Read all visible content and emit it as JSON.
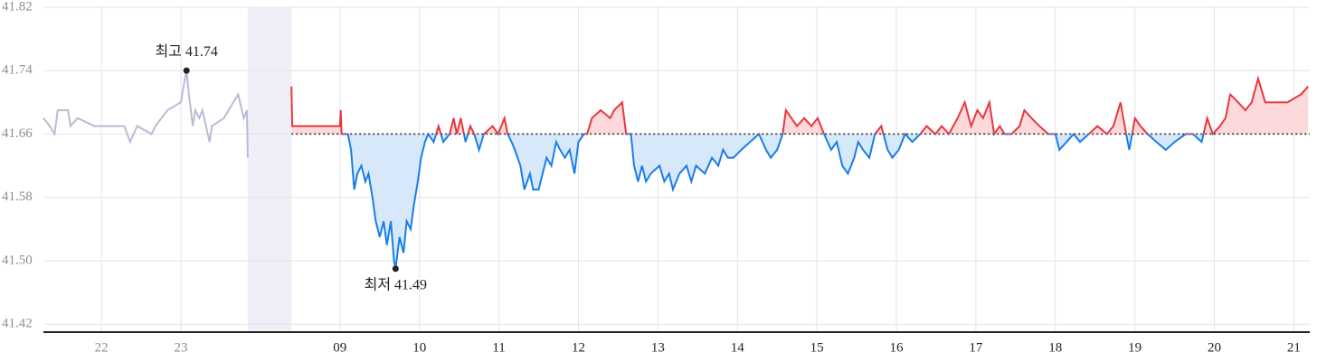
{
  "chart_data": {
    "type": "line",
    "xlim": [
      21.27,
      37.2
    ],
    "ylim": [
      41.41,
      41.82
    ],
    "yticks": [
      41.42,
      {
        "value": 41.5,
        "label": "41.50"
      },
      41.58,
      41.66,
      41.74,
      41.82
    ],
    "xticks": [
      22,
      23,
      {
        "value": 25,
        "label": "09"
      },
      {
        "value": 26,
        "label": "10"
      },
      {
        "value": 27,
        "label": "11"
      },
      {
        "value": 28,
        "label": "12"
      },
      {
        "value": 29,
        "label": "13"
      },
      {
        "value": 30,
        "label": "14"
      },
      {
        "value": 31,
        "label": "15"
      },
      {
        "value": 32,
        "label": "16"
      },
      {
        "value": 33,
        "label": "17"
      },
      {
        "value": 34,
        "label": "18"
      },
      {
        "value": 35,
        "label": "19"
      },
      {
        "value": 36,
        "label": "20"
      },
      {
        "value": 37,
        "label": "21"
      }
    ],
    "grid": true,
    "baseline": 41.66,
    "shaded_region": [
      23.84,
      24.39
    ],
    "shaded_color": "#eff0f7",
    "series": [
      {
        "color": "#b8bcd6",
        "x": [
          21.27,
          21.35,
          21.41,
          21.45,
          21.58,
          21.61,
          21.7,
          21.91,
          22.29,
          22.36,
          22.45,
          22.63,
          22.68,
          22.83,
          23.0,
          23.05,
          23.07,
          23.1,
          23.15,
          23.18,
          23.23,
          23.27,
          23.36,
          23.39,
          23.54,
          23.72,
          23.79,
          23.83,
          23.84
        ],
        "values": [
          41.68,
          41.67,
          41.66,
          41.69,
          41.69,
          41.67,
          41.68,
          41.67,
          41.67,
          41.65,
          41.67,
          41.66,
          41.67,
          41.69,
          41.7,
          41.73,
          41.74,
          41.71,
          41.67,
          41.69,
          41.68,
          41.69,
          41.65,
          41.67,
          41.68,
          41.71,
          41.68,
          41.69,
          41.63
        ]
      },
      {
        "up_color": "#e8383d",
        "down_color": "#1a7ee8",
        "up_fill": "#fdd9db",
        "down_fill": "#d8e8fb",
        "x": [
          24.39,
          24.4,
          25.0,
          25.01,
          25.02,
          25.1,
          25.14,
          25.18,
          25.22,
          25.27,
          25.32,
          25.36,
          25.41,
          25.45,
          25.5,
          25.55,
          25.59,
          25.64,
          25.68,
          25.7,
          25.75,
          25.8,
          25.84,
          25.89,
          25.93,
          25.98,
          26.02,
          26.07,
          26.11,
          26.18,
          26.24,
          26.3,
          26.38,
          26.43,
          26.47,
          26.52,
          26.58,
          26.64,
          26.69,
          26.75,
          26.81,
          26.92,
          26.99,
          27.07,
          27.11,
          27.16,
          27.2,
          27.27,
          27.32,
          27.39,
          27.43,
          27.5,
          27.55,
          27.6,
          27.66,
          27.72,
          27.77,
          27.83,
          27.89,
          27.95,
          28.0,
          28.07,
          28.11,
          28.17,
          28.28,
          28.4,
          28.45,
          28.55,
          28.6,
          28.66,
          28.7,
          28.75,
          28.8,
          28.85,
          28.91,
          29.02,
          29.08,
          29.14,
          29.19,
          29.27,
          29.36,
          29.42,
          29.48,
          29.59,
          29.68,
          29.76,
          29.82,
          29.88,
          29.95,
          30.05,
          30.16,
          30.27,
          30.36,
          30.42,
          30.5,
          30.57,
          30.61,
          30.68,
          30.75,
          30.84,
          30.93,
          31.01,
          31.09,
          31.18,
          31.25,
          31.32,
          31.39,
          31.47,
          31.52,
          31.58,
          31.66,
          31.73,
          31.81,
          31.89,
          31.95,
          32.03,
          32.11,
          32.2,
          32.3,
          32.38,
          32.49,
          32.57,
          32.66,
          32.77,
          32.86,
          32.94,
          33.02,
          33.09,
          33.17,
          33.23,
          33.3,
          33.36,
          33.45,
          33.55,
          33.61,
          33.7,
          33.8,
          33.91,
          34.0,
          34.05,
          34.14,
          34.23,
          34.31,
          34.42,
          34.53,
          34.65,
          34.73,
          34.82,
          34.89,
          34.93,
          35.0,
          35.07,
          35.16,
          35.27,
          35.39,
          35.5,
          35.64,
          35.73,
          35.84,
          35.91,
          35.98,
          36.07,
          36.14,
          36.2,
          36.3,
          36.39,
          36.47,
          36.55,
          36.64,
          36.75,
          36.92,
          37.09,
          37.18
        ],
        "values": [
          41.72,
          41.67,
          41.67,
          41.69,
          41.66,
          41.66,
          41.64,
          41.59,
          41.61,
          41.62,
          41.6,
          41.61,
          41.58,
          41.55,
          41.53,
          41.55,
          41.52,
          41.55,
          41.5,
          41.49,
          41.53,
          41.51,
          41.55,
          41.54,
          41.57,
          41.6,
          41.63,
          41.65,
          41.66,
          41.65,
          41.67,
          41.65,
          41.66,
          41.68,
          41.66,
          41.68,
          41.65,
          41.67,
          41.66,
          41.64,
          41.66,
          41.67,
          41.66,
          41.68,
          41.66,
          41.65,
          41.64,
          41.62,
          41.59,
          41.61,
          41.59,
          41.59,
          41.61,
          41.63,
          41.62,
          41.65,
          41.64,
          41.63,
          41.64,
          41.61,
          41.65,
          41.66,
          41.66,
          41.68,
          41.69,
          41.68,
          41.69,
          41.7,
          41.66,
          41.66,
          41.62,
          41.6,
          41.62,
          41.6,
          41.61,
          41.62,
          41.6,
          41.61,
          41.59,
          41.61,
          41.62,
          41.6,
          41.62,
          41.61,
          41.63,
          41.62,
          41.64,
          41.63,
          41.63,
          41.64,
          41.65,
          41.66,
          41.64,
          41.63,
          41.64,
          41.66,
          41.69,
          41.68,
          41.67,
          41.68,
          41.67,
          41.68,
          41.66,
          41.64,
          41.65,
          41.62,
          41.61,
          41.63,
          41.65,
          41.64,
          41.63,
          41.66,
          41.67,
          41.64,
          41.63,
          41.64,
          41.66,
          41.65,
          41.66,
          41.67,
          41.66,
          41.67,
          41.66,
          41.68,
          41.7,
          41.67,
          41.69,
          41.68,
          41.7,
          41.66,
          41.67,
          41.66,
          41.66,
          41.67,
          41.69,
          41.68,
          41.67,
          41.66,
          41.66,
          41.64,
          41.65,
          41.66,
          41.65,
          41.66,
          41.67,
          41.66,
          41.67,
          41.7,
          41.66,
          41.64,
          41.68,
          41.67,
          41.66,
          41.65,
          41.64,
          41.65,
          41.66,
          41.66,
          41.65,
          41.68,
          41.66,
          41.67,
          41.68,
          41.71,
          41.7,
          41.69,
          41.7,
          41.73,
          41.7,
          41.7,
          41.7,
          41.71,
          41.72
        ]
      }
    ],
    "annotations": [
      {
        "text": "최고 41.74",
        "x": 23.07,
        "y": 41.74,
        "position": "above"
      },
      {
        "text": "최저 41.49",
        "x": 25.7,
        "y": 41.49,
        "position": "below"
      }
    ]
  }
}
